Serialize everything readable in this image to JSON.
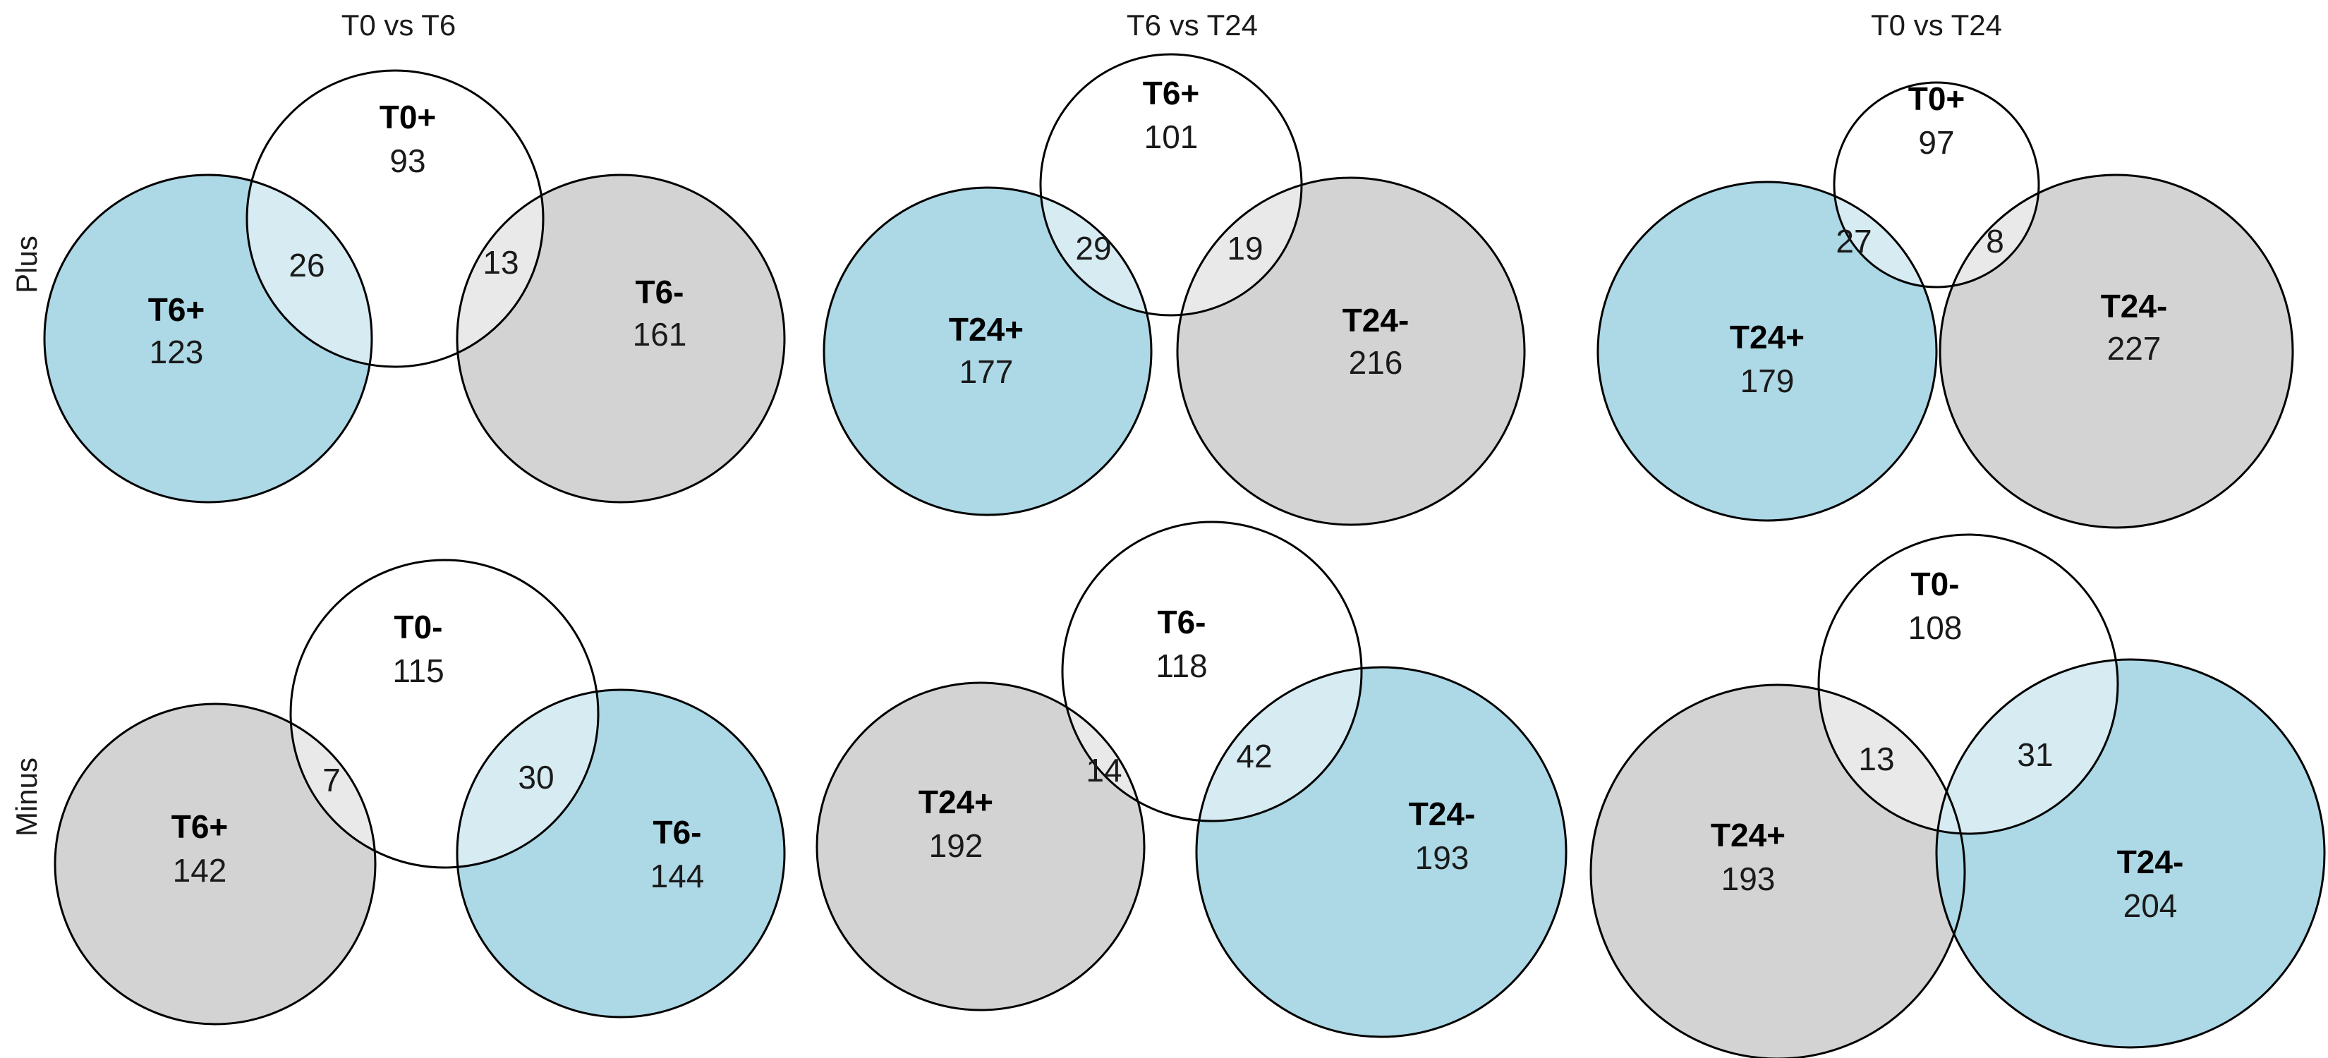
{
  "column_titles": [
    "T0 vs T6",
    "T6 vs T24",
    "T0 vs T24"
  ],
  "row_labels": [
    "Plus",
    "Minus"
  ],
  "colors": {
    "blue": "#add8e6",
    "gray": "#d3d3d3",
    "white": "#ffffff",
    "overlap_blue": "#d6ebf2",
    "overlap_gray": "#e9e9e9",
    "outline": "#000000"
  },
  "panels": [
    {
      "row": "Plus",
      "column": "T0 vs T6",
      "top_set": {
        "name": "T0+",
        "count": "93"
      },
      "left_set": {
        "name": "T6+",
        "count": "123",
        "color": "blue"
      },
      "right_set": {
        "name": "T6-",
        "count": "161",
        "color": "gray"
      },
      "overlap_left": "26",
      "overlap_right": "13"
    },
    {
      "row": "Plus",
      "column": "T6 vs T24",
      "top_set": {
        "name": "T6+",
        "count": "101"
      },
      "left_set": {
        "name": "T24+",
        "count": "177",
        "color": "blue"
      },
      "right_set": {
        "name": "T24-",
        "count": "216",
        "color": "gray"
      },
      "overlap_left": "29",
      "overlap_right": "19"
    },
    {
      "row": "Plus",
      "column": "T0 vs T24",
      "top_set": {
        "name": "T0+",
        "count": "97"
      },
      "left_set": {
        "name": "T24+",
        "count": "179",
        "color": "blue"
      },
      "right_set": {
        "name": "T24-",
        "count": "227",
        "color": "gray"
      },
      "overlap_left": "27",
      "overlap_right": "8"
    },
    {
      "row": "Minus",
      "column": "T0 vs T6",
      "top_set": {
        "name": "T0-",
        "count": "115"
      },
      "left_set": {
        "name": "T6+",
        "count": "142",
        "color": "gray"
      },
      "right_set": {
        "name": "T6-",
        "count": "144",
        "color": "blue"
      },
      "overlap_left": "7",
      "overlap_right": "30"
    },
    {
      "row": "Minus",
      "column": "T6 vs T24",
      "top_set": {
        "name": "T6-",
        "count": "118"
      },
      "left_set": {
        "name": "T24+",
        "count": "192",
        "color": "gray"
      },
      "right_set": {
        "name": "T24-",
        "count": "193",
        "color": "blue"
      },
      "overlap_left": "14",
      "overlap_right": "42"
    },
    {
      "row": "Minus",
      "column": "T0 vs T24",
      "top_set": {
        "name": "T0-",
        "count": "108"
      },
      "left_set": {
        "name": "T24+",
        "count": "193",
        "color": "gray"
      },
      "right_set": {
        "name": "T24-",
        "count": "204",
        "color": "blue"
      },
      "overlap_left": "13",
      "overlap_right": "31"
    }
  ]
}
